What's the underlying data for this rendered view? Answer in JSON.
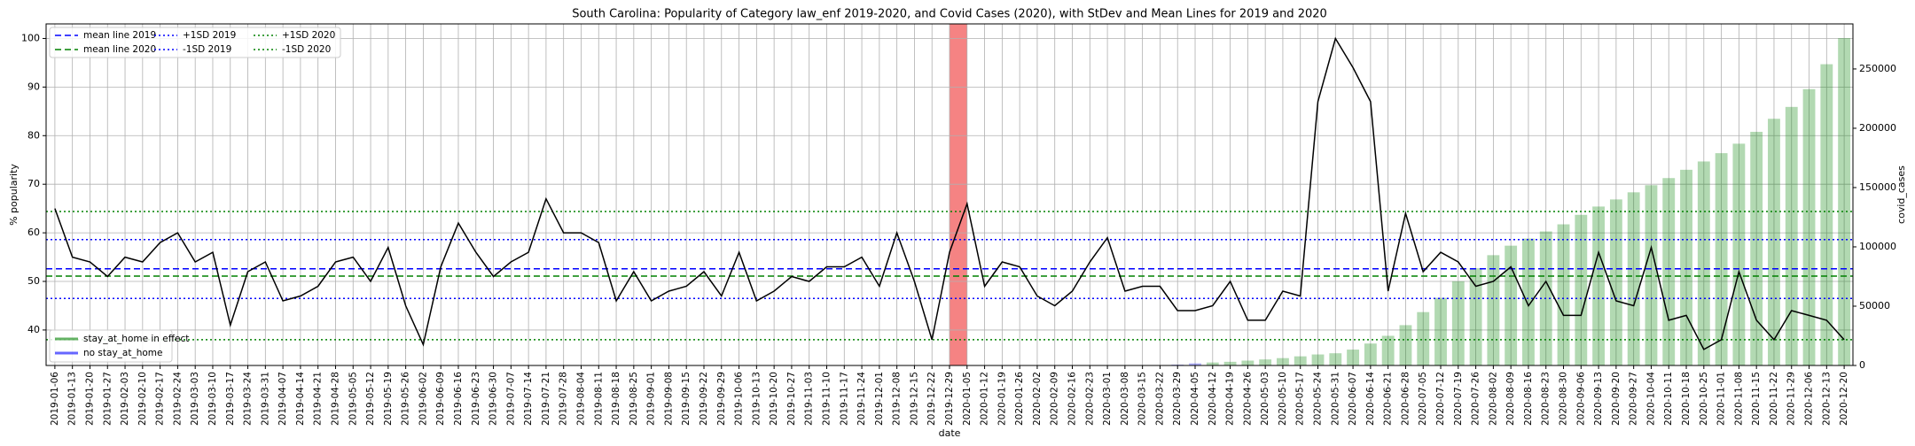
{
  "chart_data": {
    "type": "bar_line",
    "title": "South Carolina: Popularity of Category law_enf 2019-2020, and Covid Cases (2020), with StDev and Mean Lines for 2019 and 2020",
    "xlabel": "date",
    "ylabel": "% popularity",
    "y2label": "covid_cases",
    "categories": [
      "2019-01-06",
      "2019-01-13",
      "2019-01-20",
      "2019-01-27",
      "2019-02-03",
      "2019-02-10",
      "2019-02-17",
      "2019-02-24",
      "2019-03-03",
      "2019-03-10",
      "2019-03-17",
      "2019-03-24",
      "2019-03-31",
      "2019-04-07",
      "2019-04-14",
      "2019-04-21",
      "2019-04-28",
      "2019-05-05",
      "2019-05-12",
      "2019-05-19",
      "2019-05-26",
      "2019-06-02",
      "2019-06-09",
      "2019-06-16",
      "2019-06-23",
      "2019-06-30",
      "2019-07-07",
      "2019-07-14",
      "2019-07-21",
      "2019-07-28",
      "2019-08-04",
      "2019-08-11",
      "2019-08-18",
      "2019-08-25",
      "2019-09-01",
      "2019-09-08",
      "2019-09-15",
      "2019-09-22",
      "2019-09-29",
      "2019-10-06",
      "2019-10-13",
      "2019-10-20",
      "2019-10-27",
      "2019-11-03",
      "2019-11-10",
      "2019-11-17",
      "2019-11-24",
      "2019-12-01",
      "2019-12-08",
      "2019-12-15",
      "2019-12-22",
      "2019-12-29",
      "2020-01-05",
      "2020-01-12",
      "2020-01-19",
      "2020-01-26",
      "2020-02-02",
      "2020-02-09",
      "2020-02-16",
      "2020-02-23",
      "2020-03-01",
      "2020-03-08",
      "2020-03-15",
      "2020-03-22",
      "2020-03-29",
      "2020-04-05",
      "2020-04-12",
      "2020-04-19",
      "2020-04-26",
      "2020-05-03",
      "2020-05-10",
      "2020-05-17",
      "2020-05-24",
      "2020-05-31",
      "2020-06-07",
      "2020-06-14",
      "2020-06-21",
      "2020-06-28",
      "2020-07-05",
      "2020-07-12",
      "2020-07-19",
      "2020-07-26",
      "2020-08-02",
      "2020-08-09",
      "2020-08-16",
      "2020-08-23",
      "2020-08-30",
      "2020-09-06",
      "2020-09-13",
      "2020-09-20",
      "2020-09-27",
      "2020-10-04",
      "2020-10-11",
      "2020-10-18",
      "2020-10-25",
      "2020-11-01",
      "2020-11-08",
      "2020-11-15",
      "2020-11-22",
      "2020-11-29",
      "2020-12-06",
      "2020-12-13",
      "2020-12-20"
    ],
    "line": {
      "color": "#000000",
      "values": [
        65,
        55,
        54,
        51,
        55,
        54,
        58,
        60,
        54,
        56,
        41,
        52,
        54,
        46,
        47,
        49,
        54,
        55,
        50,
        57,
        45,
        37,
        53,
        62,
        56,
        51,
        54,
        56,
        67,
        60,
        60,
        58,
        46,
        52,
        46,
        48,
        49,
        52,
        47,
        56,
        46,
        48,
        51,
        50,
        53,
        53,
        55,
        49,
        60,
        50,
        38,
        56,
        66,
        49,
        54,
        53,
        47,
        45,
        48,
        54,
        59,
        48,
        49,
        49,
        44,
        44,
        45,
        50,
        42,
        42,
        48,
        47,
        87,
        100,
        94,
        87,
        48,
        64,
        52,
        56,
        54,
        49,
        50,
        53,
        45,
        50,
        43,
        43,
        56,
        46,
        45,
        57,
        42,
        43,
        36,
        38,
        52,
        42,
        38,
        44,
        43,
        42,
        38
      ]
    },
    "ref_lines": [
      {
        "name": "mean line 2019",
        "value": 52.6,
        "color": "#0000ff",
        "style": "dashed"
      },
      {
        "name": "mean line 2020",
        "value": 51.1,
        "color": "#008000",
        "style": "dashed"
      },
      {
        "name": "+1SD 2019",
        "value": 58.6,
        "color": "#0000ff",
        "style": "dotted"
      },
      {
        "name": "-1SD 2019",
        "value": 46.5,
        "color": "#0000ff",
        "style": "dotted"
      },
      {
        "name": "+1SD 2020",
        "value": 64.4,
        "color": "#008000",
        "style": "dotted"
      },
      {
        "name": "-1SD 2020",
        "value": 38.0,
        "color": "#008000",
        "style": "dotted"
      }
    ],
    "bar_series": [
      {
        "name": "stay_at_home in effect",
        "color": "#008000",
        "axis": "y2",
        "values": [
          null,
          null,
          null,
          null,
          null,
          null,
          null,
          null,
          null,
          null,
          null,
          null,
          null,
          null,
          null,
          null,
          null,
          null,
          null,
          null,
          null,
          null,
          null,
          null,
          null,
          null,
          null,
          null,
          null,
          null,
          null,
          null,
          null,
          null,
          null,
          null,
          null,
          null,
          null,
          null,
          null,
          null,
          null,
          null,
          null,
          null,
          null,
          null,
          null,
          null,
          null,
          null,
          null,
          null,
          null,
          null,
          null,
          null,
          null,
          null,
          null,
          null,
          null,
          null,
          null,
          null,
          2500,
          3100,
          4100,
          5100,
          6200,
          7700,
          9300,
          10300,
          13400,
          18500,
          25000,
          34000,
          45000,
          57000,
          71000,
          82000,
          93000,
          101000,
          107000,
          113000,
          119000,
          127000,
          134000,
          140000,
          146000,
          152000,
          158000,
          165000,
          172000,
          179000,
          187000,
          197000,
          208000,
          218000,
          233000,
          254000,
          276000
        ]
      },
      {
        "name": "no stay_at_home",
        "color": "#0000ff",
        "axis": "y2",
        "values": [
          null,
          null,
          null,
          null,
          null,
          null,
          null,
          null,
          null,
          null,
          null,
          null,
          null,
          null,
          null,
          null,
          null,
          null,
          null,
          null,
          null,
          null,
          null,
          null,
          null,
          null,
          null,
          null,
          null,
          null,
          null,
          null,
          null,
          null,
          null,
          null,
          null,
          null,
          null,
          null,
          null,
          null,
          null,
          null,
          null,
          null,
          null,
          null,
          null,
          null,
          null,
          null,
          null,
          null,
          null,
          null,
          null,
          null,
          null,
          null,
          null,
          null,
          null,
          null,
          700,
          1800,
          null,
          null,
          null,
          null,
          null,
          null,
          null,
          null,
          null,
          null,
          null,
          null,
          null,
          null,
          null,
          null,
          null,
          null,
          null,
          null,
          null,
          null,
          null,
          null,
          null,
          null,
          null,
          null,
          null,
          null,
          null,
          null,
          null,
          null,
          null,
          null,
          null
        ]
      }
    ],
    "highlight": {
      "start": "2019-12-29",
      "end": "2020-01-05",
      "color": "#f47c7c"
    },
    "ylim": [
      32.7,
      103
    ],
    "yticks": [
      40,
      50,
      60,
      70,
      80,
      90,
      100
    ],
    "y2lim": [
      0,
      288000
    ],
    "y2ticks": [
      0,
      50000,
      100000,
      150000,
      200000,
      250000
    ],
    "grid": true,
    "ref_legend_position": "upper left",
    "bar_legend_position": "lower left"
  }
}
